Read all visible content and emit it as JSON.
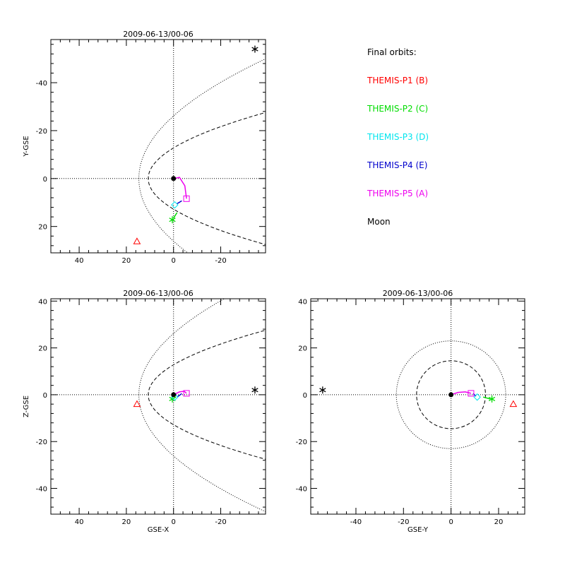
{
  "legend": {
    "title": "Final orbits:",
    "items": [
      {
        "label": "THEMIS-P1 (B)",
        "color": "#ff0000"
      },
      {
        "label": "THEMIS-P2 (C)",
        "color": "#00dd00"
      },
      {
        "label": "THEMIS-P3 (D)",
        "color": "#00e5ee"
      },
      {
        "label": "THEMIS-P4 (E)",
        "color": "#0000cc"
      },
      {
        "label": "THEMIS-P5 (A)",
        "color": "#ee00ee"
      },
      {
        "label": "Moon",
        "color": "#000000"
      }
    ]
  },
  "chart_data": [
    {
      "type": "scatter",
      "title": "2009-06-13/00-06",
      "xlabel": "",
      "ylabel": "Y-GSE",
      "xlim": [
        52,
        -39
      ],
      "ylim": [
        -58,
        31
      ],
      "y_reversed": true,
      "x_ticks": [
        40,
        20,
        0,
        -20
      ],
      "y_ticks": [
        -40,
        -20,
        0,
        20
      ],
      "points": [
        {
          "name": "THEMIS-P1 (B)",
          "marker": "triangle",
          "color": "#ff0000",
          "x": 15.5,
          "y": 26.2
        },
        {
          "name": "THEMIS-P2 (C)",
          "marker": "asterisk",
          "color": "#00dd00",
          "x": 0.5,
          "y": 17.2
        },
        {
          "name": "THEMIS-P3 (D)",
          "marker": "diamond",
          "color": "#00e5ee",
          "x": -0.5,
          "y": 11.0
        },
        {
          "name": "THEMIS-P5 (A)",
          "marker": "square",
          "color": "#ee00ee",
          "x": -5.5,
          "y": 8.4
        },
        {
          "name": "Moon",
          "marker": "asterisk",
          "color": "#000000",
          "x": -34.5,
          "y": -54.0
        },
        {
          "name": "Earth",
          "marker": "dot",
          "color": "#000000",
          "x": 0,
          "y": 0
        }
      ],
      "tracks": [
        {
          "color": "#ee00ee",
          "points": [
            [
              0,
              0
            ],
            [
              -2.5,
              -0.5
            ],
            [
              -4.8,
              3
            ],
            [
              -5.5,
              8.4
            ]
          ]
        },
        {
          "color": "#0000cc",
          "points": [
            [
              -3.5,
              9.3
            ],
            [
              -1.5,
              10.5
            ]
          ]
        },
        {
          "color": "#00dd00",
          "points": [
            [
              -1.5,
              14.2
            ],
            [
              0,
              16.5
            ]
          ]
        }
      ],
      "boundaries": [
        {
          "style": "dotted",
          "nose": 14.7,
          "flank": 49,
          "xmin": -37
        },
        {
          "style": "dashed",
          "nose": 10.7,
          "flank": 27,
          "xmin": -37
        }
      ],
      "crosshair": [
        0,
        0
      ]
    },
    {
      "type": "scatter",
      "title": "2009-06-13/00-06",
      "xlabel": "GSE-X",
      "ylabel": "Z-GSE",
      "xlim": [
        52,
        -39
      ],
      "ylim": [
        -51,
        41
      ],
      "y_reversed": false,
      "x_ticks": [
        40,
        20,
        0,
        -20
      ],
      "y_ticks": [
        -40,
        -20,
        0,
        20,
        40
      ],
      "points": [
        {
          "name": "THEMIS-P1 (B)",
          "marker": "triangle",
          "color": "#ff0000",
          "x": 15.5,
          "y": -4.0
        },
        {
          "name": "THEMIS-P2 (C)",
          "marker": "asterisk",
          "color": "#00dd00",
          "x": 0.5,
          "y": -1.8
        },
        {
          "name": "THEMIS-P3 (D)",
          "marker": "diamond",
          "color": "#00e5ee",
          "x": -0.5,
          "y": -1.0
        },
        {
          "name": "THEMIS-P5 (A)",
          "marker": "square",
          "color": "#ee00ee",
          "x": -5.5,
          "y": 0.6
        },
        {
          "name": "Moon",
          "marker": "asterisk",
          "color": "#000000",
          "x": -34.5,
          "y": 2.0
        },
        {
          "name": "Earth",
          "marker": "dot",
          "color": "#000000",
          "x": 0,
          "y": 0
        }
      ],
      "tracks": [
        {
          "color": "#ee00ee",
          "points": [
            [
              0,
              0
            ],
            [
              -2.5,
              1.2
            ],
            [
              -4.5,
              1.5
            ],
            [
              -5.5,
              0.6
            ]
          ]
        },
        {
          "color": "#0000cc",
          "points": [
            [
              -3.5,
              0.5
            ],
            [
              -1.5,
              -1.0
            ]
          ]
        },
        {
          "color": "#00dd00",
          "points": [
            [
              -1.0,
              -1.0
            ],
            [
              0.5,
              -1.8
            ]
          ]
        }
      ],
      "boundaries": [
        {
          "style": "dotted",
          "nose": 14.7,
          "flank": 49,
          "xmin": -37
        },
        {
          "style": "dashed",
          "nose": 10.7,
          "flank": 27,
          "xmin": -37
        }
      ],
      "crosshair": [
        0,
        0
      ]
    },
    {
      "type": "scatter",
      "title": "2009-06-13/00-06",
      "xlabel": "GSE-Y",
      "ylabel": "",
      "xlim": [
        -59,
        31
      ],
      "ylim": [
        -51,
        41
      ],
      "y_reversed": false,
      "x_ticks": [
        -40,
        -20,
        0,
        20
      ],
      "y_ticks": [
        -40,
        -20,
        0,
        20,
        40
      ],
      "points": [
        {
          "name": "THEMIS-P1 (B)",
          "marker": "triangle",
          "color": "#ff0000",
          "x": 26.2,
          "y": -4.0
        },
        {
          "name": "THEMIS-P2 (C)",
          "marker": "asterisk",
          "color": "#00dd00",
          "x": 17.2,
          "y": -1.8
        },
        {
          "name": "THEMIS-P3 (D)",
          "marker": "diamond",
          "color": "#00e5ee",
          "x": 11.0,
          "y": -1.0
        },
        {
          "name": "THEMIS-P5 (A)",
          "marker": "square",
          "color": "#ee00ee",
          "x": 8.4,
          "y": 0.6
        },
        {
          "name": "Moon",
          "marker": "asterisk",
          "color": "#000000",
          "x": -54.0,
          "y": 2.0
        },
        {
          "name": "Earth",
          "marker": "dot",
          "color": "#000000",
          "x": 0,
          "y": 0
        }
      ],
      "tracks": [
        {
          "color": "#ee00ee",
          "points": [
            [
              0,
              0
            ],
            [
              3,
              1.0
            ],
            [
              6,
              1.2
            ],
            [
              8.4,
              0.6
            ]
          ]
        },
        {
          "color": "#0000cc",
          "points": [
            [
              9.3,
              0.5
            ],
            [
              10.5,
              -0.6
            ]
          ]
        },
        {
          "color": "#00dd00",
          "points": [
            [
              13.5,
              -1.0
            ],
            [
              16.5,
              -1.8
            ]
          ]
        }
      ],
      "circles": [
        {
          "style": "dotted",
          "r": 23
        },
        {
          "style": "dashed",
          "r": 14.5
        }
      ],
      "crosshair": [
        0,
        0
      ]
    }
  ]
}
